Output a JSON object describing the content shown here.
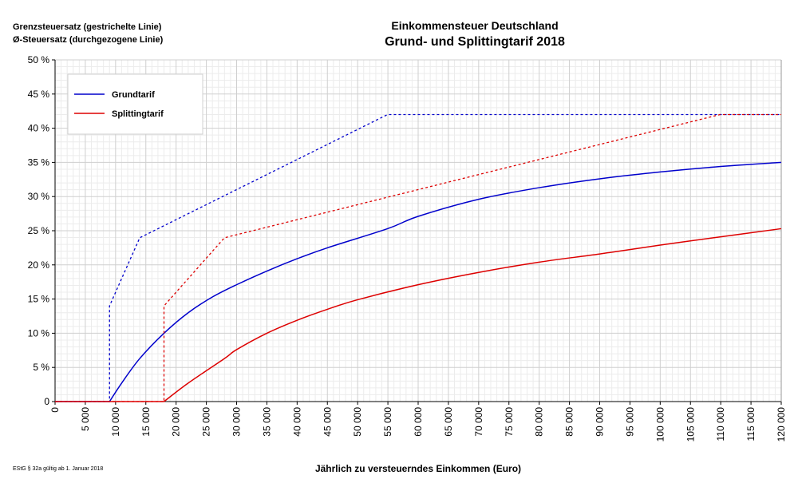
{
  "header": {
    "title_line1": "Einkommensteuer Deutschland",
    "title_line2": "Grund- und Splittingtarif 2018",
    "note_marginal": "Grenzsteuersatz (gestrichelte Linie)",
    "note_average": "Ø-Steuersatz (durchgezogene Linie)",
    "source_note": "EStG § 32a gültig ab 1. Januar 2018"
  },
  "chart_data": {
    "type": "line",
    "title": "Einkommensteuer Deutschland — Grund- und Splittingtarif 2018",
    "xlabel": "Jährlich zu versteuerndes Einkommen (Euro)",
    "ylabel": "",
    "xlim": [
      0,
      120000
    ],
    "ylim": [
      0,
      50
    ],
    "x_ticks": [
      0,
      5000,
      10000,
      15000,
      20000,
      25000,
      30000,
      35000,
      40000,
      45000,
      50000,
      55000,
      60000,
      65000,
      70000,
      75000,
      80000,
      85000,
      90000,
      95000,
      100000,
      105000,
      110000,
      115000,
      120000
    ],
    "x_tick_labels": [
      "0",
      "5 000",
      "10 000",
      "15 000",
      "20 000",
      "25 000",
      "30 000",
      "35 000",
      "40 000",
      "45 000",
      "50 000",
      "55 000",
      "60 000",
      "65 000",
      "70 000",
      "75 000",
      "80 000",
      "85 000",
      "90 000",
      "95 000",
      "100 000",
      "105 000",
      "110 000",
      "115 000",
      "120 000"
    ],
    "y_ticks": [
      0,
      5,
      10,
      15,
      20,
      25,
      30,
      35,
      40,
      45,
      50
    ],
    "y_tick_labels": [
      "0",
      "5 %",
      "10 %",
      "15 %",
      "20 %",
      "25 %",
      "30 %",
      "35 %",
      "40 %",
      "45 %",
      "50 %"
    ],
    "grid": true,
    "legend_position": "top-left",
    "legend": [
      {
        "label": "Grundtarif",
        "color": "#0000cc"
      },
      {
        "label": "Splittingtarif",
        "color": "#dd0000"
      }
    ],
    "series": [
      {
        "tariff": "Grundtarif",
        "kind": "marginal",
        "style": "dashed",
        "color": "#0000cc",
        "x": [
          0,
          9000,
          9000,
          13996,
          54949,
          120000
        ],
        "y": [
          0,
          0,
          14,
          23.97,
          42,
          42
        ]
      },
      {
        "tariff": "Grundtarif",
        "kind": "average",
        "style": "solid",
        "color": "#0000cc",
        "x": [
          0,
          9000,
          11000,
          13996,
          18000,
          22000,
          26000,
          30000,
          35000,
          40000,
          45000,
          54949,
          60000,
          70000,
          80000,
          90000,
          100000,
          110000,
          120000
        ],
        "y": [
          0,
          0,
          2.7,
          6.3,
          10.0,
          13.0,
          15.3,
          17.1,
          19.1,
          20.9,
          22.5,
          25.3,
          27.1,
          29.6,
          31.3,
          32.6,
          33.6,
          34.4,
          35.0
        ]
      },
      {
        "tariff": "Splittingtarif",
        "kind": "marginal",
        "style": "dashed",
        "color": "#dd0000",
        "x": [
          0,
          18000,
          18000,
          27992,
          109898,
          120000
        ],
        "y": [
          0,
          0,
          14,
          23.97,
          42,
          42
        ]
      },
      {
        "tariff": "Splittingtarif",
        "kind": "average",
        "style": "solid",
        "color": "#dd0000",
        "x": [
          0,
          18000,
          22000,
          27992,
          30000,
          35000,
          40000,
          45000,
          50000,
          60000,
          70000,
          80000,
          90000,
          100000,
          109898,
          120000
        ],
        "y": [
          0,
          0,
          2.7,
          6.3,
          7.6,
          10.0,
          11.9,
          13.5,
          14.9,
          17.1,
          18.9,
          20.4,
          21.6,
          22.9,
          24.1,
          25.3
        ]
      }
    ]
  }
}
